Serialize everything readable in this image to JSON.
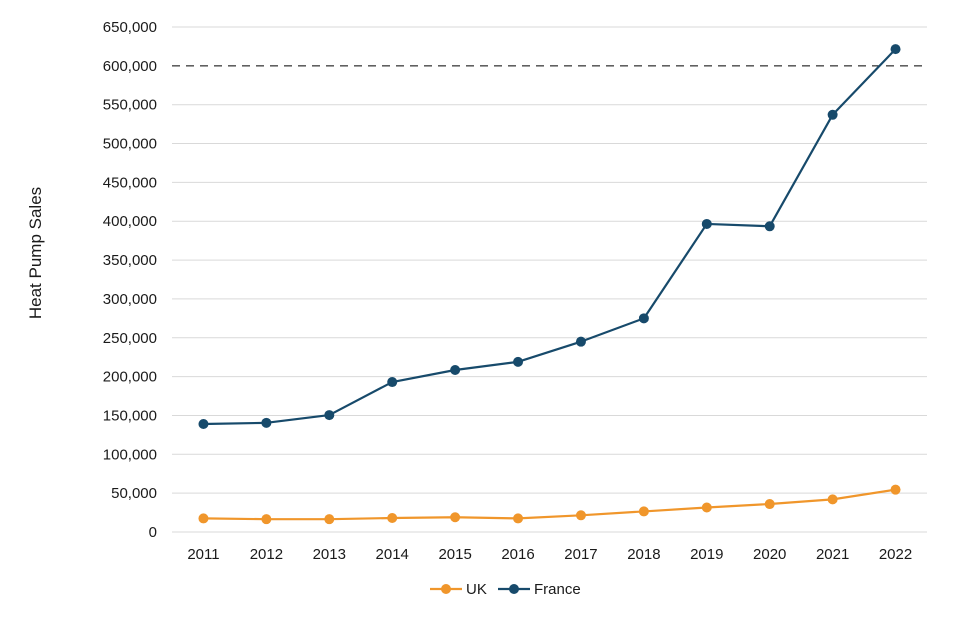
{
  "chart_data": {
    "type": "line",
    "title": "",
    "xlabel": "",
    "ylabel": "Heat Pump Sales",
    "categories": [
      "2011",
      "2012",
      "2013",
      "2014",
      "2015",
      "2016",
      "2017",
      "2018",
      "2019",
      "2020",
      "2021",
      "2022"
    ],
    "series": [
      {
        "name": "UK",
        "color": "#F0962B",
        "values": [
          17500,
          16500,
          16500,
          18000,
          19000,
          17500,
          21500,
          26500,
          31500,
          36000,
          42000,
          54500
        ]
      },
      {
        "name": "France",
        "color": "#174A6B",
        "values": [
          139000,
          140500,
          150500,
          193000,
          208500,
          219000,
          245000,
          275000,
          396500,
          393500,
          537000,
          621500
        ]
      }
    ],
    "ylim": [
      0,
      650000
    ],
    "ytick_step": 50000,
    "y_tick_labels": [
      "0",
      "50,000",
      "100,000",
      "150,000",
      "200,000",
      "250,000",
      "300,000",
      "350,000",
      "400,000",
      "450,000",
      "500,000",
      "550,000",
      "600,000",
      "650,000"
    ],
    "reference_line": {
      "value": 600000,
      "style": "dashed",
      "color": "#000000"
    },
    "grid": true,
    "grid_color": "#d9d9d9",
    "legend_position": "bottom-center"
  }
}
